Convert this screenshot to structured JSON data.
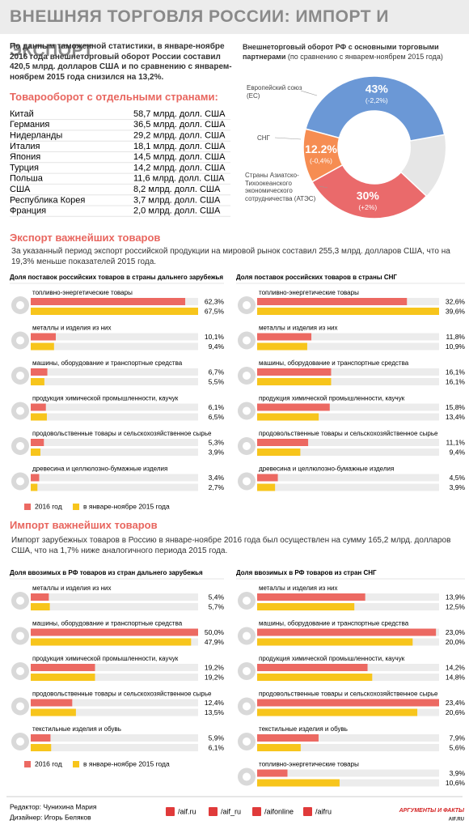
{
  "header": {
    "title": "ВНЕШНЯЯ ТОРГОВЛЯ РОССИИ: ИМПОРТ И ЭКСПОРТ"
  },
  "intro": "По данным таможенной статистики, в январе-ноябре 2016 года внешнеторговый оборот России составил 420,5 млрд. долларов США и по сравнению с январем-ноябрем 2015 года снизился на 13,2%.",
  "countries": {
    "title": "Товарооборот с отдельными странами:",
    "rows": [
      [
        "Китай",
        "58,7 млрд. долл. США"
      ],
      [
        "Германия",
        "36,5 млрд. долл. США"
      ],
      [
        "Нидерланды",
        "29,2 млрд. долл. США"
      ],
      [
        "Италия",
        "18,1 млрд. долл. США"
      ],
      [
        "Япония",
        "14,5 млрд. долл. США"
      ],
      [
        "Турция",
        "14,2 млрд. долл. США"
      ],
      [
        "Польша",
        "11,6 млрд. долл. США"
      ],
      [
        "США",
        "8,2 млрд. долл. США"
      ],
      [
        "Республика Корея",
        "3,7 млрд. долл. США"
      ],
      [
        "Франция",
        "2,0 млрд. долл. США"
      ]
    ]
  },
  "chart_data": {
    "type": "pie",
    "title": "Внешнеторговый оборот РФ с основными торговыми партнерами",
    "subtitle": "(по сравнению с январем-ноябрем 2015 года)",
    "categories": [
      "Европейский союз (ЕС)",
      "СНГ",
      "Страны Азиатско-Тихоокеанского экономического сотрудничества (АТЭС)"
    ],
    "values": [
      43,
      12.2,
      30
    ],
    "value_labels": [
      "43%",
      "12.2%",
      "30%"
    ],
    "change_labels": [
      "(-2,2%)",
      "(-0,4%)",
      "(+2%)"
    ],
    "colors": [
      "#6b98d6",
      "#f68d52",
      "#ea6a6b"
    ]
  },
  "series": [
    {
      "name": "2016 год",
      "color": "#ec6962"
    },
    {
      "name": "в январе-ноябре 2015 года",
      "color": "#f7c51c"
    }
  ],
  "export": {
    "title": "Экспорт важнейших товаров",
    "text": "За указанный период экспорт российской продукции на мировой рынок составил 255,3 млрд. долларов США, что на 19,3% меньше показателей 2015 года.",
    "panels": [
      {
        "title": "Доля поставок российских товаров в страны дальнего зарубежья",
        "categories": [
          "топливно-энергетические товары",
          "металлы и изделия из них",
          "машины, оборудование и транспортные средства",
          "продукция химической промышленности, каучук",
          "продовольственные товары и сельскохозяйственное сырье",
          "древесина и целлюлозно-бумажные изделия"
        ],
        "series": [
          {
            "values": [
              62.3,
              10.1,
              6.7,
              6.1,
              5.3,
              3.4
            ],
            "value_labels": [
              "62,3%",
              "10,1%",
              "6,7%",
              "6,1%",
              "5,3%",
              "3,4%"
            ]
          },
          {
            "values": [
              67.5,
              9.4,
              5.5,
              6.5,
              3.9,
              2.7
            ],
            "value_labels": [
              "67,5%",
              "9,4%",
              "5,5%",
              "6,5%",
              "3,9%",
              "2,7%"
            ]
          }
        ]
      },
      {
        "title": "Доля поставок российских товаров в страны СНГ",
        "categories": [
          "топливно-энергетические товары",
          "металлы и изделия из них",
          "машины, оборудование и транспортные средства",
          "продукция химической промышленности, каучук",
          "продовольственные товары и сельскохозяйственное сырье",
          "древесина и целлюлозно-бумажные изделия"
        ],
        "series": [
          {
            "values": [
              32.6,
              11.8,
              16.1,
              15.8,
              11.1,
              4.5
            ],
            "value_labels": [
              "32,6%",
              "11,8%",
              "16,1%",
              "15,8%",
              "11,1%",
              "4,5%"
            ]
          },
          {
            "values": [
              39.6,
              10.9,
              16.1,
              13.4,
              9.4,
              3.9
            ],
            "value_labels": [
              "39,6%",
              "10,9%",
              "16,1%",
              "13,4%",
              "9,4%",
              "3,9%"
            ]
          }
        ]
      }
    ]
  },
  "import": {
    "title": "Импорт важнейших товаров",
    "text": "Импорт зарубежных товаров в Россию в январе-ноябре 2016 года был осуществлен на сумму  165,2 млрд. долларов США, что на 1,7% ниже аналогичного периода 2015 года.",
    "panels": [
      {
        "title": "Доля ввозимых в РФ товаров из стран дальнего зарубежья",
        "categories": [
          "металлы и изделия из них",
          "машины, оборудование и транспортные средства",
          "продукция химической промышленности, каучук",
          "продовольственные товары и сельскохозяйственное сырье",
          "текстильные изделия и обувь"
        ],
        "series": [
          {
            "values": [
              5.4,
              50.0,
              19.2,
              12.4,
              5.9
            ],
            "value_labels": [
              "5,4%",
              "50,0%",
              "19,2%",
              "12,4%",
              "5,9%"
            ]
          },
          {
            "values": [
              5.7,
              47.9,
              19.2,
              13.5,
              6.1
            ],
            "value_labels": [
              "5,7%",
              "47,9%",
              "19,2%",
              "13,5%",
              "6,1%"
            ]
          }
        ]
      },
      {
        "title": "Доля ввозимых в РФ товаров из стран СНГ",
        "categories": [
          "металлы и изделия из них",
          "машины, оборудование и транспортные средства",
          "продукция химической промышленности, каучук",
          "продовольственные товары и сельскохозяйственное сырье",
          "текстильные изделия и обувь",
          "топливно-энергетические товары"
        ],
        "series": [
          {
            "values": [
              13.9,
              23.0,
              14.2,
              23.4,
              7.9,
              3.9
            ],
            "value_labels": [
              "13,9%",
              "23,0%",
              "14,2%",
              "23,4%",
              "7,9%",
              "3,9%"
            ]
          },
          {
            "values": [
              12.5,
              20.0,
              14.8,
              20.6,
              5.6,
              10.6
            ],
            "value_labels": [
              "12,5%",
              "20,0%",
              "14,8%",
              "20,6%",
              "5,6%",
              "10,6%"
            ]
          }
        ]
      }
    ]
  },
  "footer": {
    "editor": "Редактор: Чунихина Мария",
    "designer": "Дизайнер: Игорь Беляков",
    "socials": [
      "/aif.ru",
      "/aif_ru",
      "/aifonline",
      "/aifru"
    ],
    "logo": "АРГУМЕНТЫ И ФАКТЫ",
    "site": "AIF.RU"
  }
}
